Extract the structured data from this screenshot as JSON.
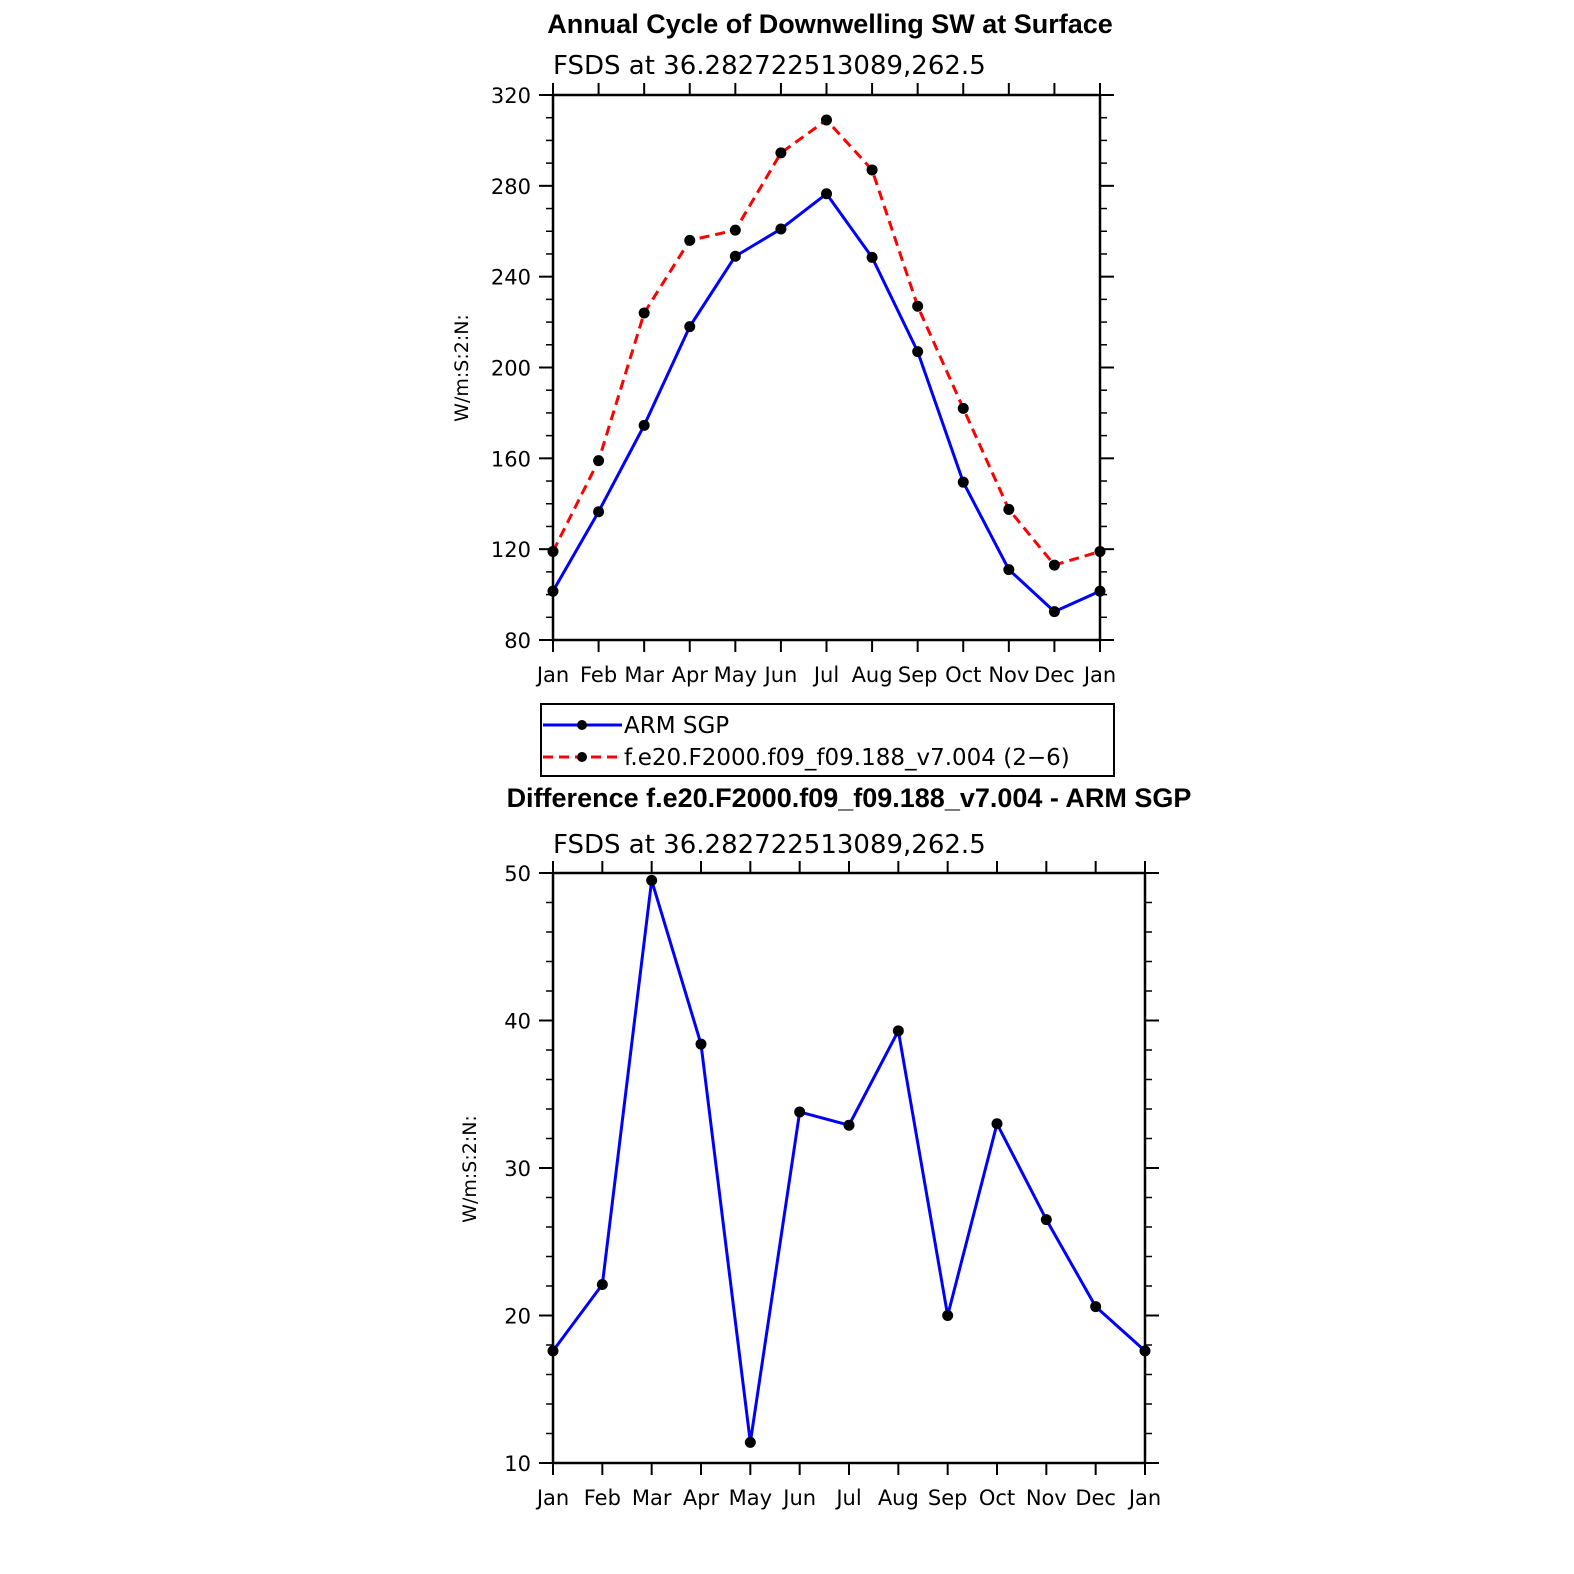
{
  "chart_data": [
    {
      "type": "line",
      "title": "Annual Cycle of Downwelling SW at Surface",
      "subtitle": "FSDS at 36.282722513089,262.5",
      "ylabel": "W/m:S:2:N:",
      "ylim": [
        80,
        320
      ],
      "yticks": [
        "80",
        "120",
        "160",
        "200",
        "240",
        "280",
        "320"
      ],
      "categories": [
        "Jan",
        "Feb",
        "Mar",
        "Apr",
        "May",
        "Jun",
        "Jul",
        "Aug",
        "Sep",
        "Oct",
        "Nov",
        "Dec",
        "Jan"
      ],
      "legend_position": "below",
      "series": [
        {
          "name": "ARM SGP",
          "color": "#0000ff",
          "dash": "solid",
          "values": [
            101.5,
            136.5,
            174.5,
            218,
            249,
            261,
            276.5,
            248.5,
            207,
            149.5,
            111,
            92.5,
            101.5
          ]
        },
        {
          "name": "f.e20.F2000.f09_f09.188_v7.004 (2−6)",
          "color": "#ff0000",
          "dash": "dashed",
          "values": [
            119,
            159,
            224,
            256,
            260.5,
            294.5,
            309,
            287,
            227,
            182,
            137.5,
            113,
            119
          ]
        }
      ]
    },
    {
      "type": "line",
      "title": "Difference f.e20.F2000.f09_f09.188_v7.004 - ARM SGP",
      "subtitle": "FSDS at 36.282722513089,262.5",
      "ylabel": "W/m:S:2:N:",
      "ylim": [
        10,
        50
      ],
      "yticks": [
        "10",
        "20",
        "30",
        "40",
        "50"
      ],
      "categories": [
        "Jan",
        "Feb",
        "Mar",
        "Apr",
        "May",
        "Jun",
        "Jul",
        "Aug",
        "Sep",
        "Oct",
        "Nov",
        "Dec",
        "Jan"
      ],
      "series": [
        {
          "color": "#0000ff",
          "dash": "solid",
          "values": [
            17.6,
            22.1,
            49.5,
            38.4,
            11.4,
            33.8,
            32.9,
            39.3,
            20.0,
            33.0,
            26.5,
            20.6,
            17.6
          ]
        }
      ]
    }
  ]
}
